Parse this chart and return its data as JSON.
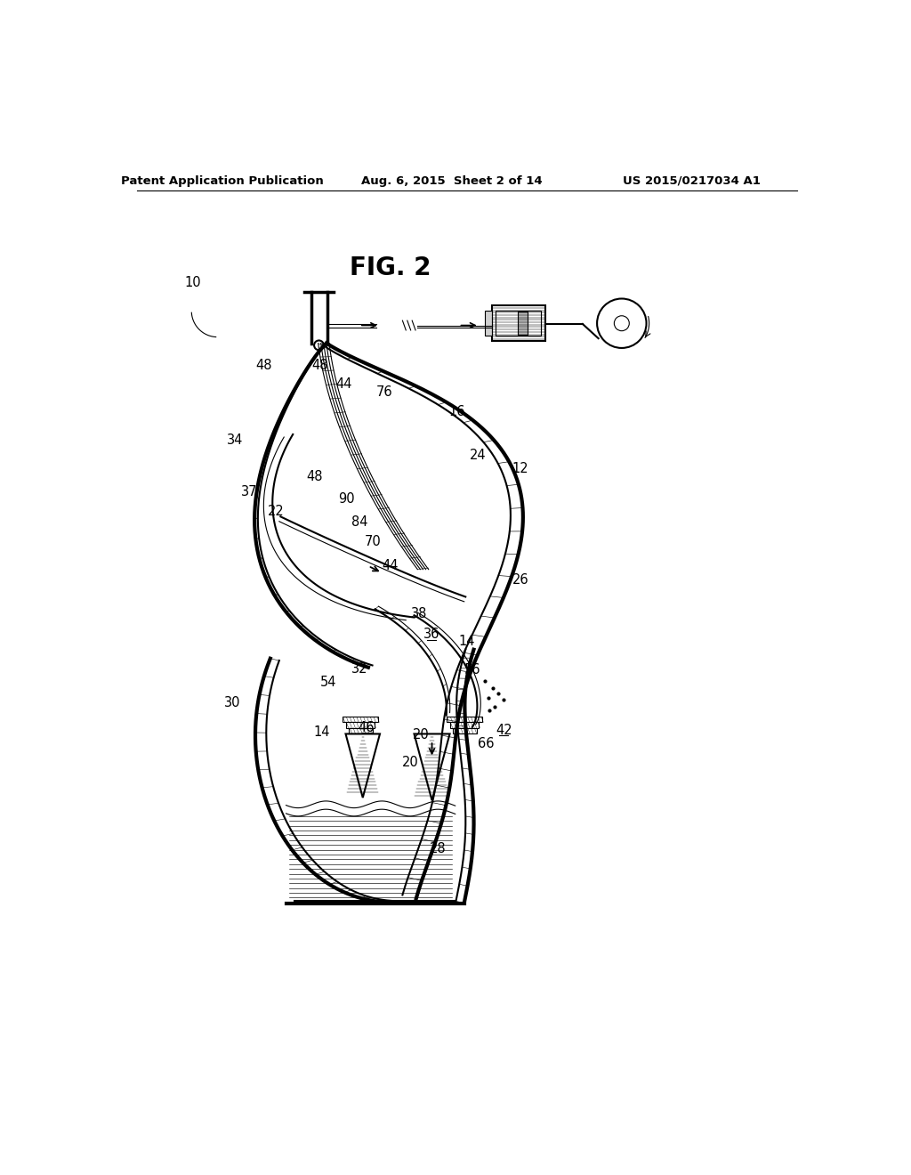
{
  "title": "FIG. 2",
  "header_left": "Patent Application Publication",
  "header_center": "Aug. 6, 2015  Sheet 2 of 14",
  "header_right": "US 2015/0217034 A1",
  "background_color": "#ffffff",
  "line_color": "#000000"
}
